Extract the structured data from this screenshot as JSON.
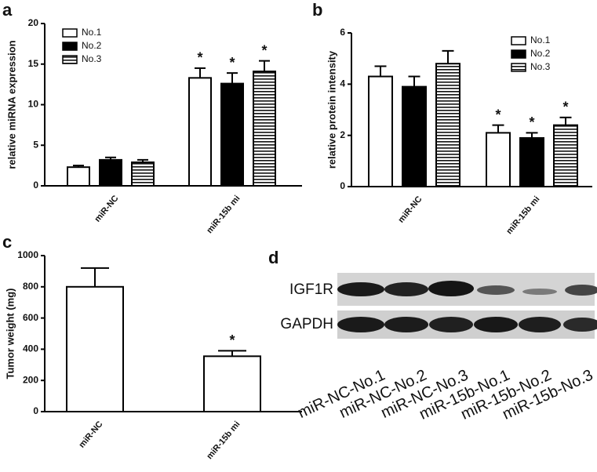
{
  "chart_data": [
    {
      "type": "bar",
      "panel": "a",
      "y_label": "relative miRNA expression",
      "categories": [
        "miR-NC",
        "miR-15b mi"
      ],
      "series": [
        {
          "name": "No.1",
          "color": "#ffffff",
          "values": [
            2.3,
            13.3
          ],
          "errors": [
            0.2,
            1.2
          ],
          "annotations": [
            null,
            "*"
          ]
        },
        {
          "name": "No.2",
          "color": "#000000",
          "values": [
            3.2,
            12.6
          ],
          "errors": [
            0.3,
            1.3
          ],
          "annotations": [
            null,
            "*"
          ]
        },
        {
          "name": "No.3",
          "color": "striped",
          "values": [
            2.9,
            14.1
          ],
          "errors": [
            0.3,
            1.3
          ],
          "annotations": [
            null,
            "*"
          ]
        }
      ],
      "ylim": [
        0,
        20
      ],
      "yticks": [
        0,
        5,
        10,
        15,
        20
      ],
      "legend": "upper left"
    },
    {
      "type": "bar",
      "panel": "b",
      "y_label": "relative protein intensity",
      "categories": [
        "miR-NC",
        "miR-15b mi"
      ],
      "series": [
        {
          "name": "No.1",
          "color": "#ffffff",
          "values": [
            4.3,
            2.1
          ],
          "errors": [
            0.4,
            0.3
          ],
          "annotations": [
            null,
            "*"
          ]
        },
        {
          "name": "No.2",
          "color": "#000000",
          "values": [
            3.9,
            1.9
          ],
          "errors": [
            0.4,
            0.2
          ],
          "annotations": [
            null,
            "*"
          ]
        },
        {
          "name": "No.3",
          "color": "striped",
          "values": [
            4.8,
            2.4
          ],
          "errors": [
            0.5,
            0.3
          ],
          "annotations": [
            null,
            "*"
          ]
        }
      ],
      "ylim": [
        0,
        6
      ],
      "yticks": [
        0,
        2,
        4,
        6
      ],
      "legend": "upper right"
    },
    {
      "type": "bar",
      "panel": "c",
      "y_label": "Tumor weight (mg)",
      "categories": [
        "miR-NC",
        "miR-15b mi"
      ],
      "series": [
        {
          "color": "#ffffff",
          "values": [
            800,
            355
          ],
          "errors": [
            120,
            35
          ],
          "annotations": [
            null,
            "*"
          ]
        }
      ],
      "ylim": [
        0,
        1000
      ],
      "yticks": [
        0,
        200,
        400,
        600,
        800,
        1000
      ]
    }
  ],
  "blot": {
    "panel": "d",
    "rows": [
      "IGF1R",
      "GAPDH"
    ],
    "lanes": [
      "miR-NC-No.1",
      "miR-NC-No.2",
      "miR-NC-No.3",
      "miR-15b-No.1",
      "miR-15b-No.2",
      "miR-15b-No.3"
    ]
  }
}
